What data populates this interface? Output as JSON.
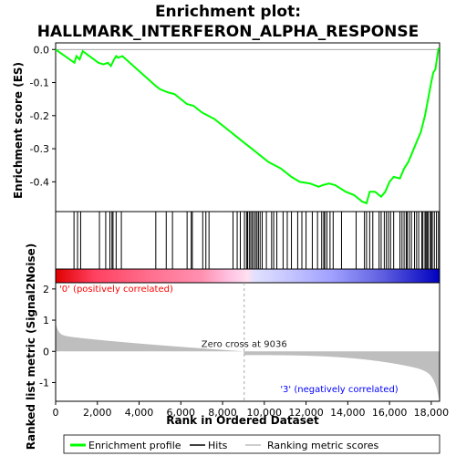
{
  "chart_data": {
    "type": "line",
    "title_line1": "Enrichment plot:",
    "title_line2": "HALLMARK_INTERFERON_ALPHA_RESPONSE",
    "xlabel": "Rank in Ordered Dataset",
    "ylabel_top": "Enrichment score (ES)",
    "ylabel_bottom": "Ranked list metric (Signal2Noise)",
    "x_range": [
      0,
      18400
    ],
    "x_ticks": [
      0,
      2000,
      4000,
      6000,
      8000,
      10000,
      12000,
      14000,
      16000,
      18000
    ],
    "x_tick_labels": [
      "0",
      "2,000",
      "4,000",
      "6,000",
      "8,000",
      "10,000",
      "12,000",
      "14,000",
      "16,000",
      "18,000"
    ],
    "es_ylim": [
      -0.49,
      0.02
    ],
    "es_ticks": [
      0.0,
      -0.1,
      -0.2,
      -0.3,
      -0.4
    ],
    "es_tick_labels": [
      "0.0",
      "-0.1",
      "-0.2",
      "-0.3",
      "-0.4"
    ],
    "metric_ylim": [
      -1.6,
      2.2
    ],
    "metric_ticks": [
      2,
      1,
      0,
      -1
    ],
    "metric_tick_labels": [
      "2",
      "1",
      "0",
      "-1"
    ],
    "enrichment_profile": [
      [
        0,
        0.0
      ],
      [
        900,
        -0.04
      ],
      [
        1000,
        -0.02
      ],
      [
        1150,
        -0.03
      ],
      [
        1300,
        -0.005
      ],
      [
        2050,
        -0.04
      ],
      [
        2300,
        -0.045
      ],
      [
        2500,
        -0.04
      ],
      [
        2650,
        -0.05
      ],
      [
        2800,
        -0.03
      ],
      [
        2900,
        -0.02
      ],
      [
        3000,
        -0.025
      ],
      [
        3200,
        -0.02
      ],
      [
        4800,
        -0.11
      ],
      [
        5000,
        -0.12
      ],
      [
        5400,
        -0.13
      ],
      [
        5700,
        -0.135
      ],
      [
        6300,
        -0.165
      ],
      [
        6600,
        -0.17
      ],
      [
        7000,
        -0.19
      ],
      [
        7300,
        -0.2
      ],
      [
        7600,
        -0.21
      ],
      [
        8400,
        -0.25
      ],
      [
        9000,
        -0.28
      ],
      [
        9600,
        -0.31
      ],
      [
        10200,
        -0.34
      ],
      [
        10800,
        -0.36
      ],
      [
        11300,
        -0.385
      ],
      [
        11700,
        -0.4
      ],
      [
        12200,
        -0.405
      ],
      [
        12600,
        -0.415
      ],
      [
        12800,
        -0.41
      ],
      [
        13100,
        -0.405
      ],
      [
        13400,
        -0.41
      ],
      [
        13900,
        -0.43
      ],
      [
        14300,
        -0.44
      ],
      [
        14700,
        -0.46
      ],
      [
        14900,
        -0.465
      ],
      [
        15050,
        -0.43
      ],
      [
        15300,
        -0.43
      ],
      [
        15600,
        -0.445
      ],
      [
        15800,
        -0.43
      ],
      [
        16000,
        -0.4
      ],
      [
        16200,
        -0.385
      ],
      [
        16500,
        -0.39
      ],
      [
        16700,
        -0.36
      ],
      [
        16900,
        -0.34
      ],
      [
        17100,
        -0.31
      ],
      [
        17300,
        -0.28
      ],
      [
        17500,
        -0.25
      ],
      [
        17700,
        -0.2
      ],
      [
        17850,
        -0.15
      ],
      [
        18000,
        -0.1
      ],
      [
        18100,
        -0.07
      ],
      [
        18200,
        -0.06
      ],
      [
        18350,
        0.005
      ]
    ],
    "hits": [
      880,
      1050,
      1200,
      2100,
      2400,
      2600,
      2700,
      2750,
      2900,
      3150,
      4800,
      5300,
      5600,
      6300,
      6500,
      6550,
      7050,
      7200,
      7350,
      8500,
      8700,
      8850,
      9050,
      9150,
      9200,
      9280,
      9350,
      9420,
      9500,
      9580,
      9650,
      9720,
      9800,
      9900,
      10100,
      10350,
      10450,
      10600,
      10900,
      11100,
      11300,
      11600,
      11800,
      12000,
      12300,
      12550,
      12750,
      12850,
      12900,
      13000,
      13150,
      13300,
      13700,
      14400,
      14800,
      14900,
      15050,
      15200,
      15500,
      15600,
      15750,
      15850,
      15950,
      16050,
      16200,
      16500,
      16600,
      16700,
      16800,
      16850,
      16950,
      17050,
      17200,
      17300,
      17400,
      17550,
      17600,
      17700,
      17750,
      17800,
      17850,
      17950,
      18000,
      18050,
      18150,
      18250,
      18350
    ],
    "zero_cross": 9036,
    "zero_cross_label": "Zero cross at 9036",
    "positive_label": "'0' (positively correlated)",
    "negative_label": "'3' (negatively correlated)",
    "legend": [
      {
        "label": "Enrichment profile",
        "color": "#00ff00"
      },
      {
        "label": "Hits",
        "color": "#000000"
      },
      {
        "label": "Ranking metric scores",
        "color": "#bebebe"
      }
    ],
    "colors": {
      "profile": "#00ff00",
      "metric_fill": "#bebebe",
      "positive_text": "#ff0000",
      "negative_text": "#0000ff"
    }
  }
}
